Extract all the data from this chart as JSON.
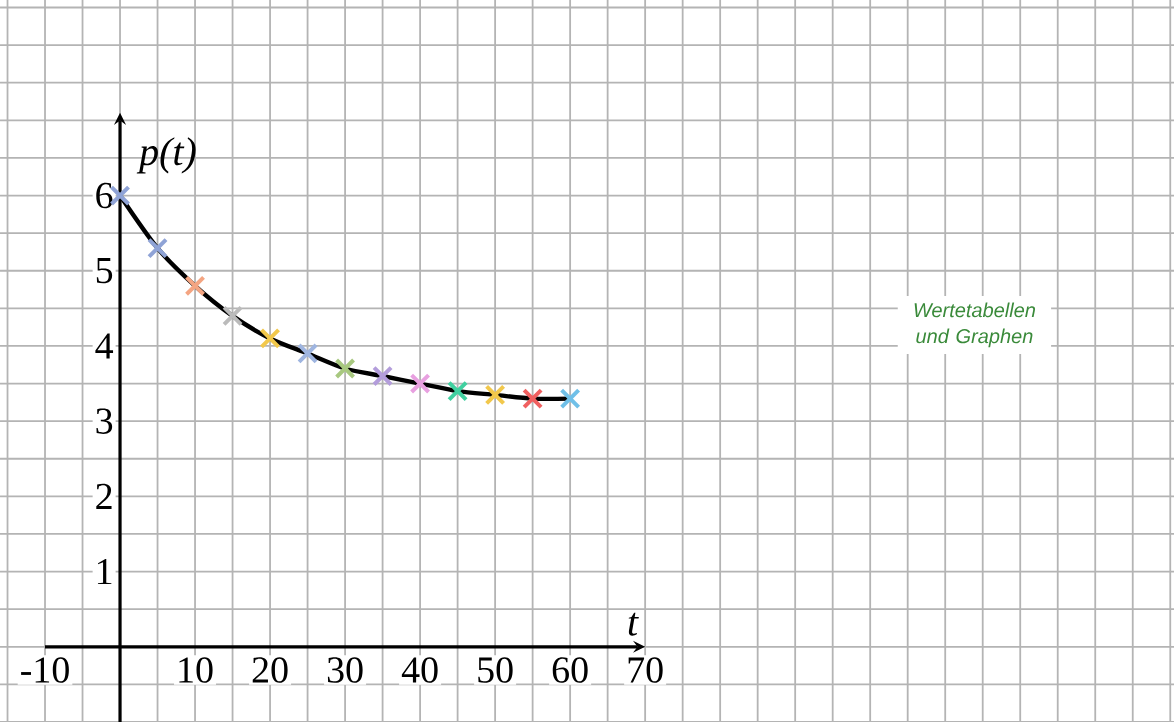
{
  "chart_data": {
    "type": "line",
    "xlabel": "t",
    "ylabel": "p(t)",
    "x": [
      0,
      5,
      10,
      15,
      20,
      25,
      30,
      35,
      40,
      45,
      50,
      55,
      60
    ],
    "series": [
      {
        "color": "#000000",
        "colors": [
          "#8fa3d6",
          "#8fa3d6",
          "#f4a582",
          "#bbbbbb",
          "#f2c84b",
          "#9fb5e0",
          "#a8c880",
          "#b39ddb",
          "#e8a0e0",
          "#40d0a0",
          "#f2c84b",
          "#f06060",
          "#70c0e8"
        ],
        "values": [
          6.0,
          5.3,
          4.8,
          4.4,
          4.1,
          3.9,
          3.7,
          3.6,
          3.5,
          3.4,
          3.35,
          3.3,
          3.3
        ]
      }
    ],
    "xlim": [
      -16,
      140.5
    ],
    "ylim": [
      -1,
      8.6
    ],
    "xticks": [
      -10,
      10,
      20,
      30,
      40,
      50,
      60,
      70
    ],
    "yticks": [
      1,
      2,
      3,
      4,
      5,
      6
    ],
    "grid": true,
    "marker": "cross",
    "line_style": "solid",
    "annotations": [
      "Wertetabellen und Graphen"
    ]
  }
}
